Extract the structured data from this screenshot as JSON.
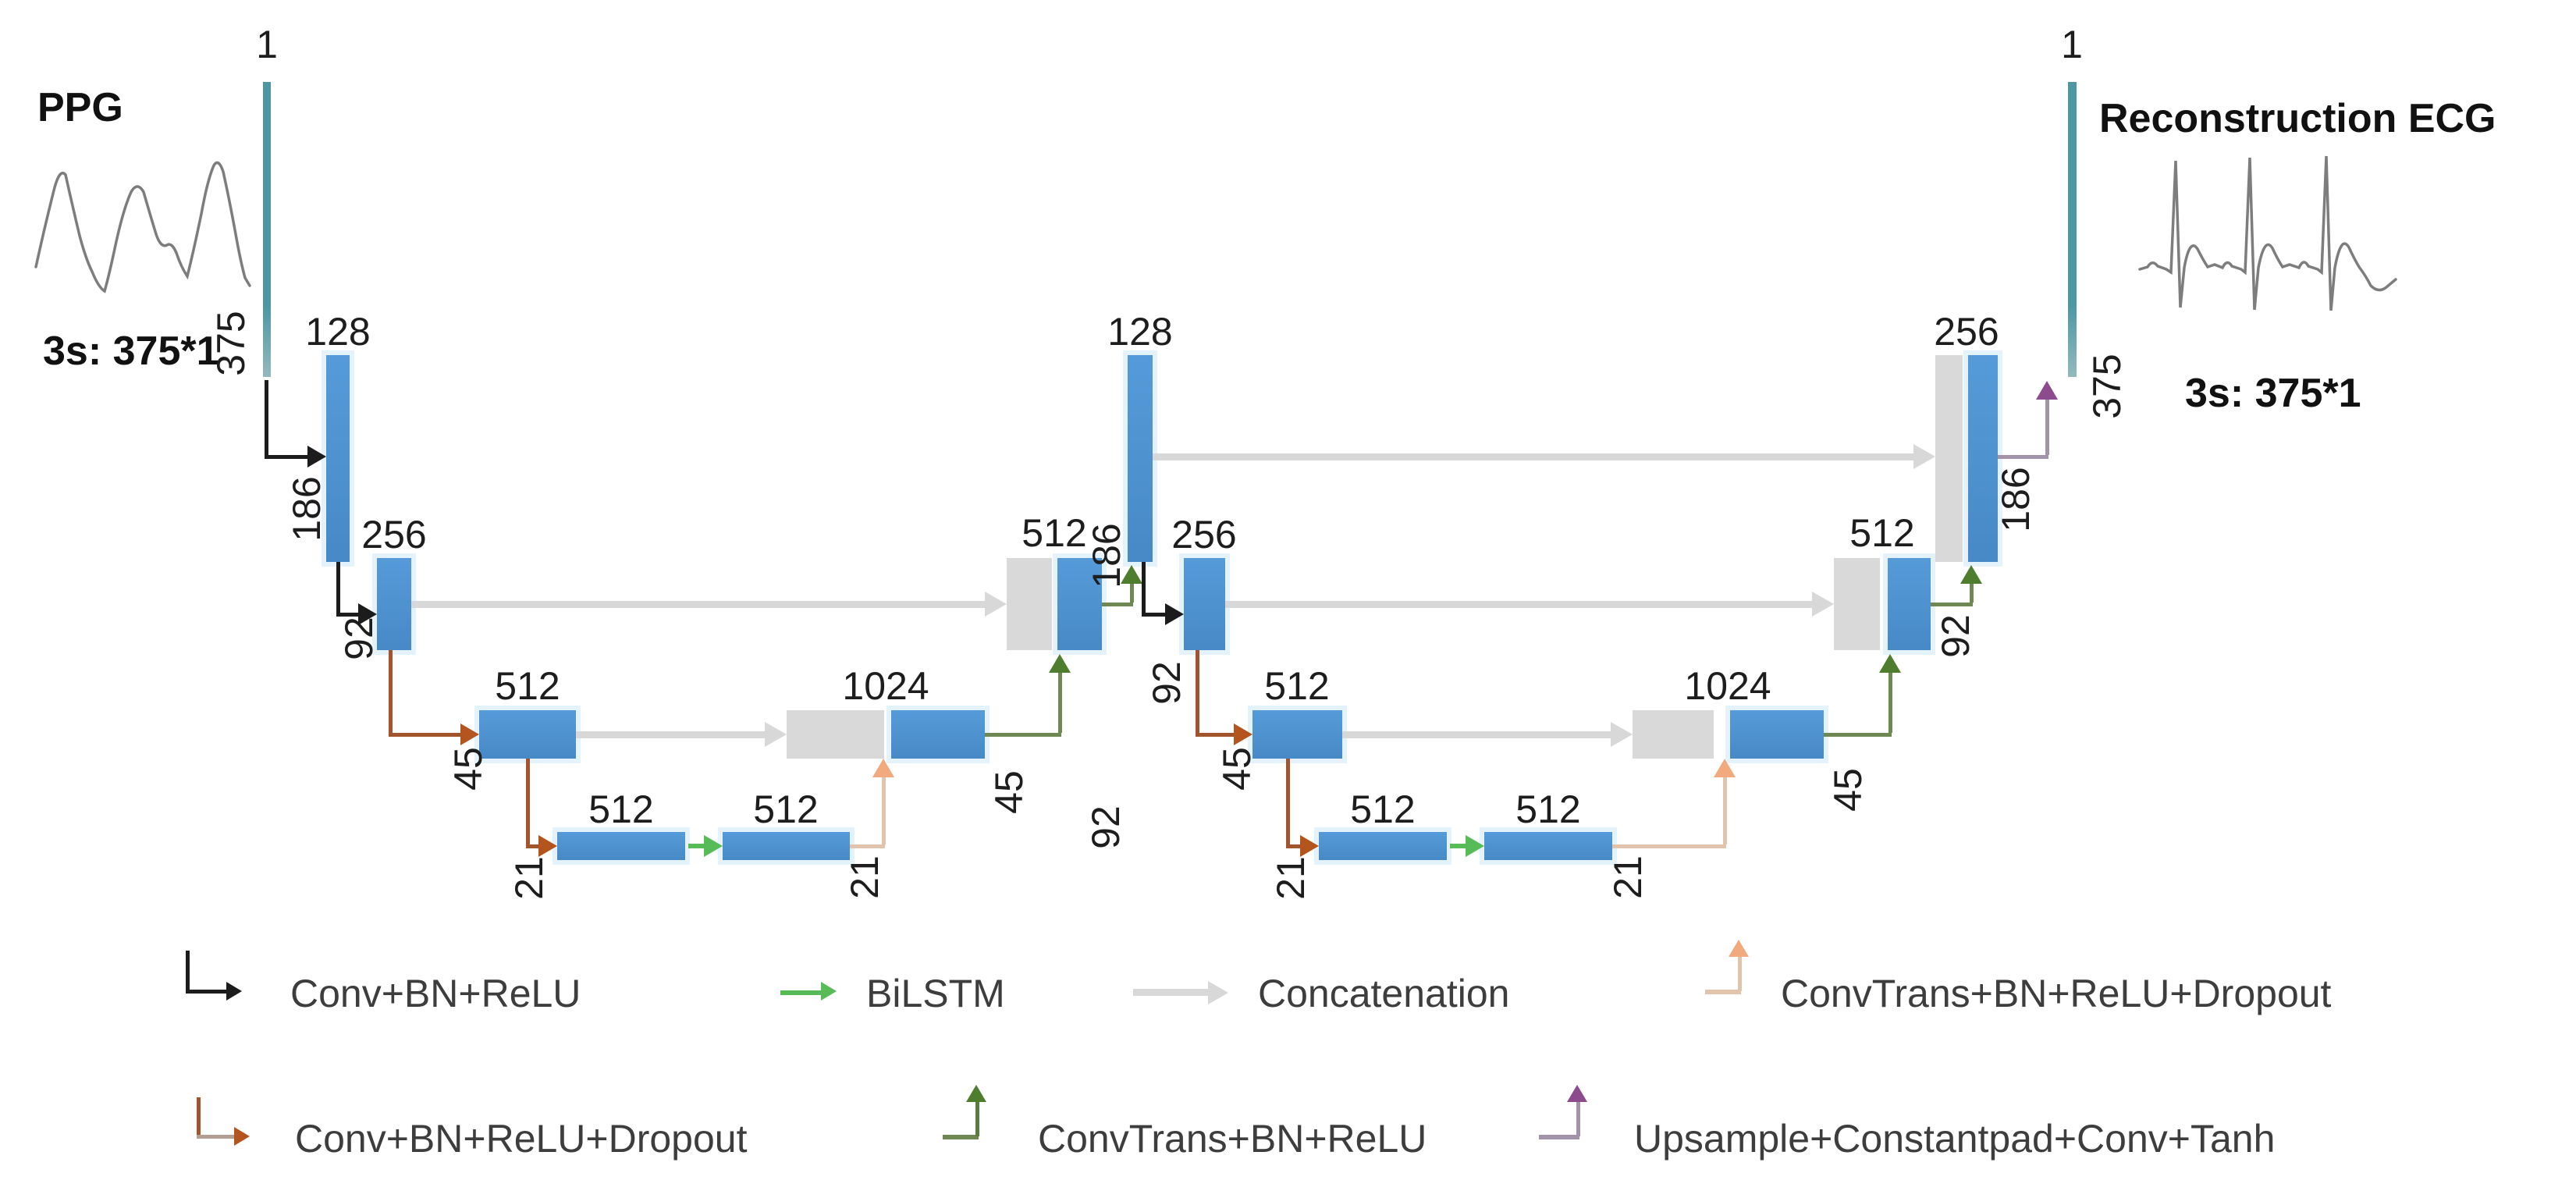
{
  "input": {
    "title": "PPG",
    "dims": "3s: 375*1"
  },
  "output": {
    "title": "Reconstruction ECG",
    "dims": "3s: 375*1"
  },
  "diagram": {
    "channel_labels": [
      "1",
      "128",
      "256",
      "512",
      "512",
      "512",
      "1024",
      "512",
      "128",
      "256",
      "512",
      "512",
      "512",
      "1024",
      "512",
      "256",
      "1"
    ],
    "size_labels": [
      "375",
      "186",
      "92",
      "45",
      "21",
      "21",
      "45",
      "92",
      "186",
      "92",
      "45",
      "21",
      "21",
      "45",
      "92",
      "186",
      "375"
    ]
  },
  "legend": {
    "row1": [
      {
        "icon": "conv-bn-relu-arrow",
        "label": "Conv+BN+ReLU"
      },
      {
        "icon": "bilstm-arrow",
        "label": "BiLSTM"
      },
      {
        "icon": "concatenation-arrow",
        "label": "Concatenation"
      },
      {
        "icon": "convtrans-bn-relu-dropout-arrow",
        "label": "ConvTrans+BN+ReLU+Dropout"
      }
    ],
    "row2": [
      {
        "icon": "conv-bn-relu-dropout-arrow",
        "label": "Conv+BN+ReLU+Dropout"
      },
      {
        "icon": "convtrans-bn-relu-arrow",
        "label": "ConvTrans+BN+ReLU"
      },
      {
        "icon": "upsample-constantpad-conv-tanh-arrow",
        "label": "Upsample+Constantpad+Conv+Tanh"
      }
    ]
  },
  "colors": {
    "blue_bar": "#4b90d2",
    "teal_bar": "#4d97a5",
    "gray_box": "#d9d9d9",
    "concatenation_gray": "#d8d8d8",
    "conv_black": "#1c1c1c",
    "conv_dropout_brown": "#b4541e",
    "convtrans_dropout_orange": "#f2a97e",
    "bilstm_green": "#57bb57",
    "convtrans_green": "#4f7d2e",
    "upsample_purple": "#8b4b8d",
    "waveform_gray": "#7d7d7d"
  }
}
